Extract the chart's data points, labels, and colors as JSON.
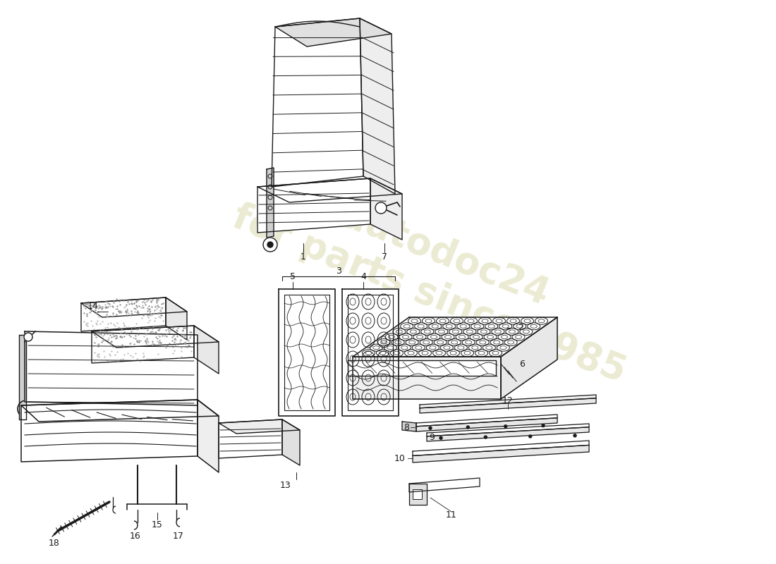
{
  "background_color": "#ffffff",
  "line_color": "#1a1a1a",
  "watermark_color": "#d4d4a0",
  "figsize": [
    11.0,
    8.0
  ],
  "dpi": 100
}
